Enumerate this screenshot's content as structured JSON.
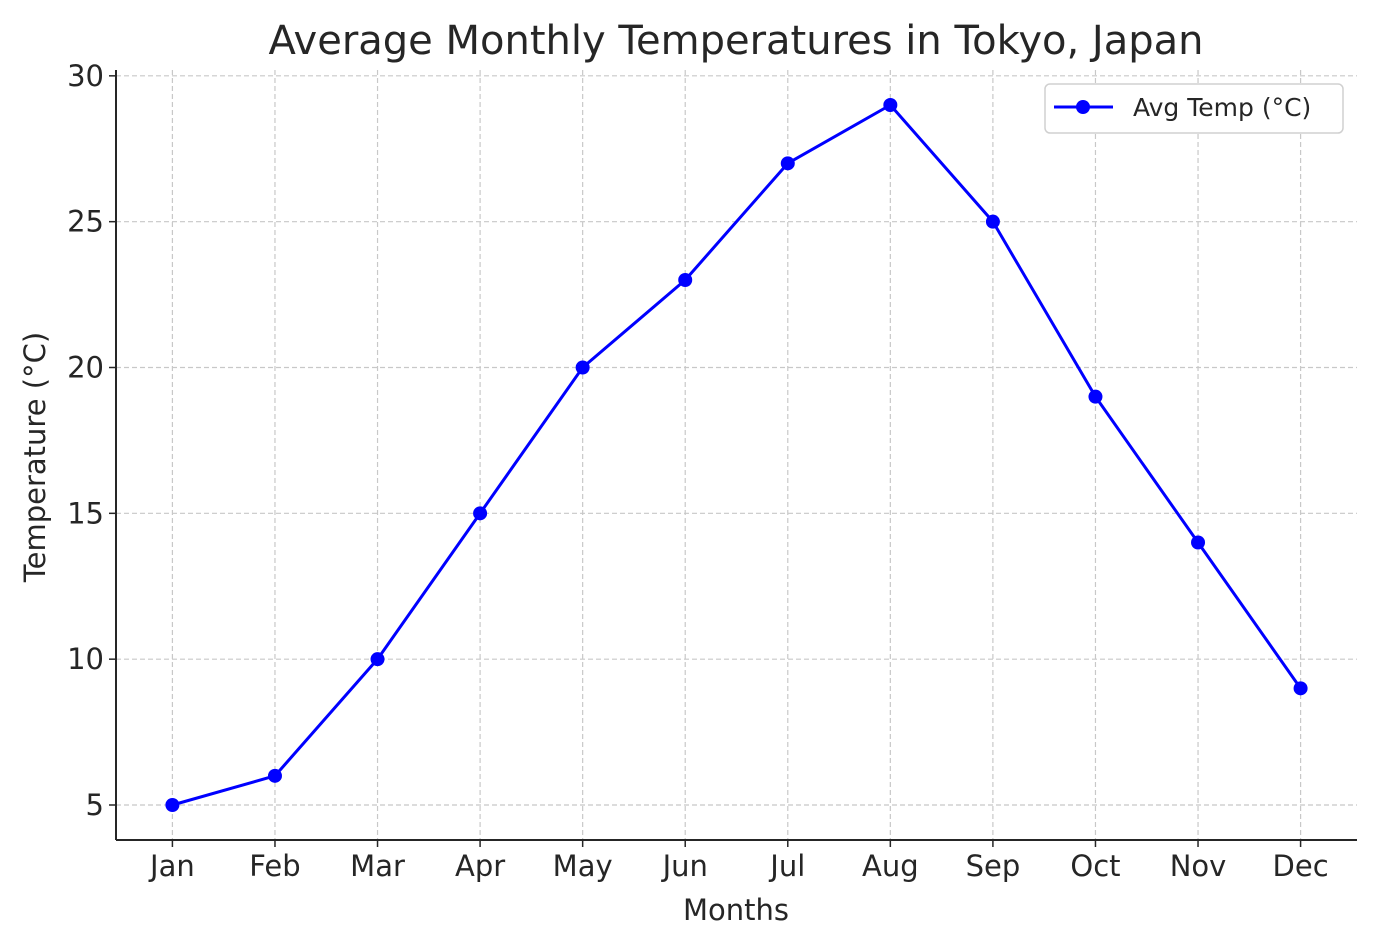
{
  "chart_data": {
    "type": "line",
    "title": "Average Monthly Temperatures in Tokyo, Japan",
    "xlabel": "Months",
    "ylabel": "Temperature (°C)",
    "categories": [
      "Jan",
      "Feb",
      "Mar",
      "Apr",
      "May",
      "Jun",
      "Jul",
      "Aug",
      "Sep",
      "Oct",
      "Nov",
      "Dec"
    ],
    "series": [
      {
        "name": "Avg Temp (°C)",
        "values": [
          5,
          6,
          10,
          15,
          20,
          23,
          27,
          29,
          25,
          19,
          14,
          9
        ],
        "color": "#0000ff",
        "marker": "circle"
      }
    ],
    "yticks": [
      "5",
      "10",
      "15",
      "20",
      "25",
      "30"
    ],
    "ylim": [
      3.8,
      30.2
    ],
    "grid": true,
    "legend": "top-right"
  }
}
